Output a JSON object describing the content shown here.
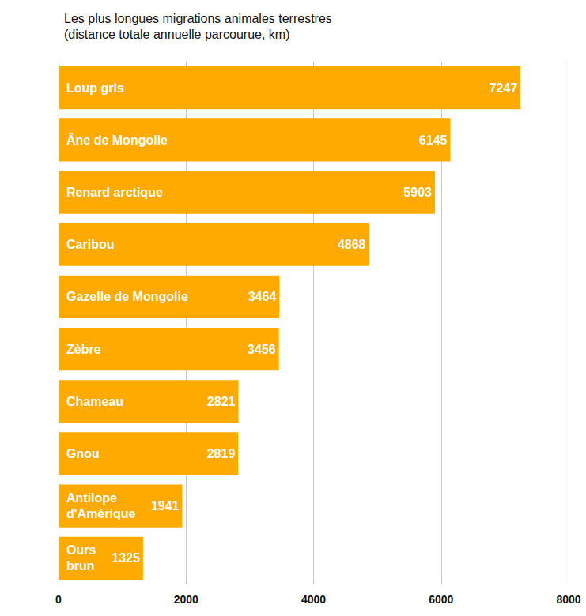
{
  "chart_data": {
    "type": "bar",
    "title": "Les plus longues migrations animales terrestres",
    "subtitle": "(distance totale annuelle parcourue, km)",
    "orientation": "horizontal",
    "categories": [
      "Loup gris",
      "Âne de Mongolie",
      "Renard arctique",
      "Caribou",
      "Gazelle de Mongolie",
      "Zèbre",
      "Chameau",
      "Gnou",
      "Antilope d'Amérique",
      "Ours brun"
    ],
    "values": [
      7247,
      6145,
      5903,
      4868,
      3464,
      3456,
      2821,
      2819,
      1941,
      1325
    ],
    "color": "#ffaa00",
    "xlim": [
      0,
      8000
    ],
    "xticks": [
      0,
      2000,
      4000,
      6000,
      8000
    ],
    "grid": true,
    "data_labels": true
  }
}
